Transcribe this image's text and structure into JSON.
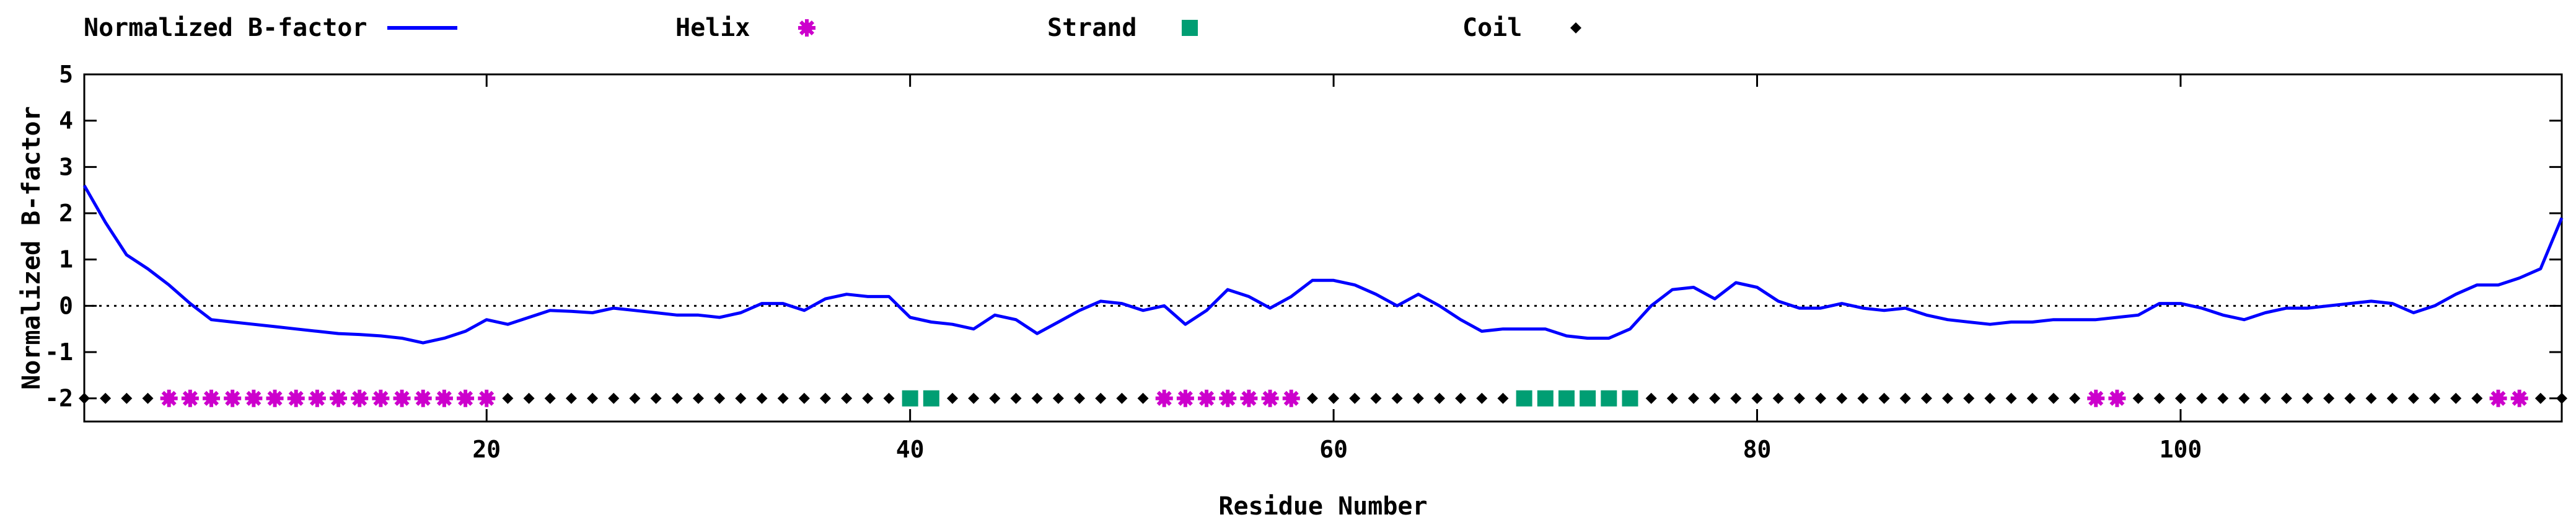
{
  "chart_data": {
    "type": "line",
    "xlabel": "Residue Number",
    "ylabel": "Normalized B-factor",
    "xlim": [
      1,
      118
    ],
    "ylim": [
      -2.5,
      5
    ],
    "xticks": [
      20,
      40,
      60,
      80,
      100
    ],
    "yticks": [
      -2,
      -1,
      0,
      1,
      2,
      3,
      4,
      5
    ],
    "reference_line": 0,
    "legend_position": "top",
    "series": [
      {
        "name": "Normalized B-factor",
        "style": "line",
        "color": "#0000ff",
        "x": [
          1,
          2,
          3,
          4,
          5,
          6,
          7,
          8,
          9,
          10,
          11,
          12,
          13,
          14,
          15,
          16,
          17,
          18,
          19,
          20,
          21,
          22,
          23,
          24,
          25,
          26,
          27,
          28,
          29,
          30,
          31,
          32,
          33,
          34,
          35,
          36,
          37,
          38,
          39,
          40,
          41,
          42,
          43,
          44,
          45,
          46,
          47,
          48,
          49,
          50,
          51,
          52,
          53,
          54,
          55,
          56,
          57,
          58,
          59,
          60,
          61,
          62,
          63,
          64,
          65,
          66,
          67,
          68,
          69,
          70,
          71,
          72,
          73,
          74,
          75,
          76,
          77,
          78,
          79,
          80,
          81,
          82,
          83,
          84,
          85,
          86,
          87,
          88,
          89,
          90,
          91,
          92,
          93,
          94,
          95,
          96,
          97,
          98,
          99,
          100,
          101,
          102,
          103,
          104,
          105,
          106,
          107,
          108,
          109,
          110,
          111,
          112,
          113,
          114,
          115,
          116,
          117,
          118
        ],
        "y": [
          2.6,
          1.8,
          1.1,
          0.8,
          0.45,
          0.05,
          -0.3,
          -0.35,
          -0.4,
          -0.45,
          -0.5,
          -0.55,
          -0.6,
          -0.62,
          -0.65,
          -0.7,
          -0.8,
          -0.7,
          -0.55,
          -0.3,
          -0.4,
          -0.25,
          -0.1,
          -0.12,
          -0.15,
          -0.05,
          -0.1,
          -0.15,
          -0.2,
          -0.2,
          -0.25,
          -0.15,
          0.05,
          0.05,
          -0.1,
          0.15,
          0.25,
          0.2,
          0.2,
          -0.25,
          -0.35,
          -0.4,
          -0.5,
          -0.2,
          -0.3,
          -0.6,
          -0.35,
          -0.1,
          0.1,
          0.05,
          -0.1,
          0.0,
          -0.4,
          -0.1,
          0.35,
          0.2,
          -0.05,
          0.2,
          0.55,
          0.55,
          0.45,
          0.25,
          0.0,
          0.25,
          0.0,
          -0.3,
          -0.55,
          -0.5,
          -0.5,
          -0.5,
          -0.65,
          -0.7,
          -0.7,
          -0.5,
          0.0,
          0.35,
          0.4,
          0.15,
          0.5,
          0.4,
          0.1,
          -0.05,
          -0.05,
          0.05,
          -0.05,
          -0.1,
          -0.05,
          -0.2,
          -0.3,
          -0.35,
          -0.4,
          -0.35,
          -0.35,
          -0.3,
          -0.3,
          -0.3,
          -0.25,
          -0.2,
          0.05,
          0.05,
          -0.05,
          -0.2,
          -0.3,
          -0.15,
          -0.05,
          -0.05,
          0.0,
          0.05,
          0.1,
          0.05,
          -0.15,
          0.0,
          0.25,
          0.45,
          0.45,
          0.6,
          0.8,
          1.9
        ]
      },
      {
        "name": "Helix",
        "style": "points",
        "marker": "star",
        "color": "#cc00cc",
        "y_level": -2,
        "x": [
          5,
          6,
          7,
          8,
          9,
          10,
          11,
          12,
          13,
          14,
          15,
          16,
          17,
          18,
          19,
          20,
          52,
          53,
          54,
          55,
          56,
          57,
          58,
          96,
          97,
          115,
          116
        ]
      },
      {
        "name": "Strand",
        "style": "points",
        "marker": "square",
        "color": "#009e73",
        "y_level": -2,
        "x": [
          40,
          41,
          69,
          70,
          71,
          72,
          73,
          74
        ]
      },
      {
        "name": "Coil",
        "style": "points",
        "marker": "diamond",
        "color": "#000000",
        "y_level": -2,
        "x": [
          1,
          2,
          3,
          4,
          21,
          22,
          23,
          24,
          25,
          26,
          27,
          28,
          29,
          30,
          31,
          32,
          33,
          34,
          35,
          36,
          37,
          38,
          39,
          42,
          43,
          44,
          45,
          46,
          47,
          48,
          49,
          50,
          51,
          59,
          60,
          61,
          62,
          63,
          64,
          65,
          66,
          67,
          68,
          75,
          76,
          77,
          78,
          79,
          80,
          81,
          82,
          83,
          84,
          85,
          86,
          87,
          88,
          89,
          90,
          91,
          92,
          93,
          94,
          95,
          98,
          99,
          100,
          101,
          102,
          103,
          104,
          105,
          106,
          107,
          108,
          109,
          110,
          111,
          112,
          113,
          114,
          117,
          118
        ]
      }
    ]
  }
}
